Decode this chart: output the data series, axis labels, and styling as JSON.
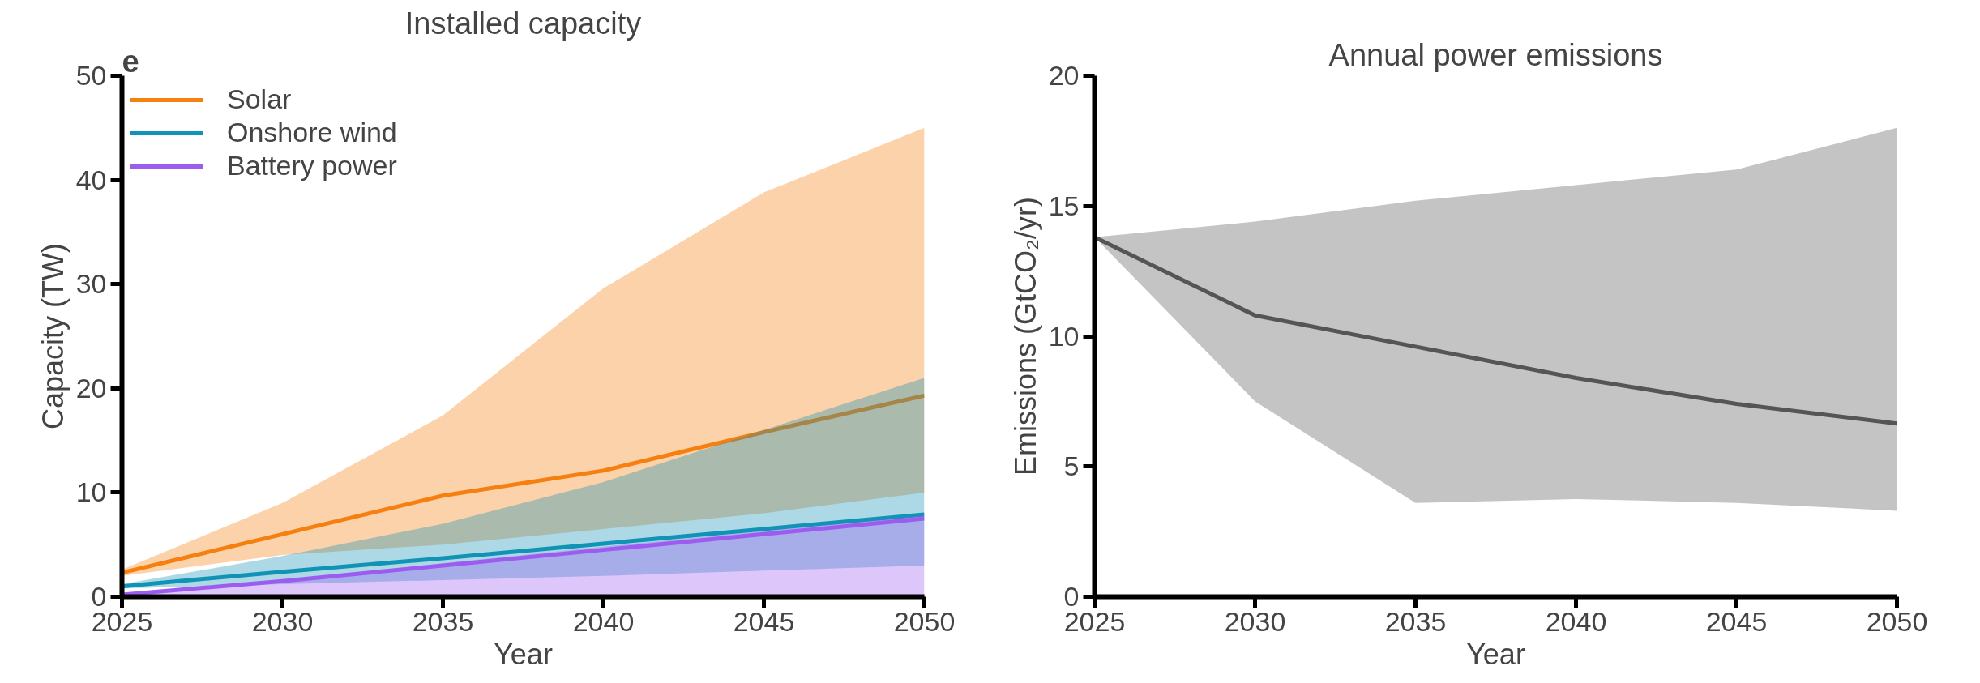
{
  "chart_data": [
    {
      "type": "line",
      "title": "Installed capacity",
      "xlabel": "Year",
      "ylabel": "Capacity (TW)",
      "annotations": [
        "e"
      ],
      "x": [
        2025,
        2030,
        2035,
        2040,
        2045,
        2050
      ],
      "xlim": [
        2025,
        2050
      ],
      "xticks": [
        2025,
        2030,
        2035,
        2040,
        2045,
        2050
      ],
      "ylim": [
        0,
        50
      ],
      "yticks": [
        0,
        10,
        20,
        30,
        40,
        50
      ],
      "legend": "top left",
      "grid": false,
      "series": [
        {
          "name": "Solar",
          "color": "#f57f0f",
          "values": [
            2.3,
            6,
            9.7,
            12.1,
            15.8,
            19.3
          ],
          "lower": [
            2,
            4,
            5,
            6.5,
            8,
            10
          ],
          "upper": [
            2.6,
            9,
            17.4,
            29.6,
            38.8,
            45
          ]
        },
        {
          "name": "Onshore wind",
          "color": "#1193b5",
          "values": [
            1,
            2.4,
            3.7,
            5.1,
            6.5,
            7.9
          ],
          "lower": [
            0.8,
            1.2,
            1.6,
            2,
            2.5,
            3
          ],
          "upper": [
            1.2,
            3.9,
            7,
            11,
            16,
            21
          ]
        },
        {
          "name": "Battery power",
          "color": "#9d5cf0",
          "values": [
            0.2,
            1.5,
            3,
            4.5,
            6,
            7.5
          ],
          "lower": [
            0,
            0,
            0,
            0,
            0,
            0
          ],
          "upper": [
            0.3,
            1.6,
            3.2,
            4.8,
            6.3,
            7.8
          ]
        }
      ]
    },
    {
      "type": "line",
      "title": "Annual power emissions",
      "xlabel": "Year",
      "ylabel": "Emissions (GtCO₂/yr)",
      "x": [
        2025,
        2030,
        2035,
        2040,
        2045,
        2050
      ],
      "xlim": [
        2025,
        2050
      ],
      "xticks": [
        2025,
        2030,
        2035,
        2040,
        2045,
        2050
      ],
      "ylim": [
        0,
        20
      ],
      "yticks": [
        0,
        5,
        10,
        15,
        20
      ],
      "legend": false,
      "grid": false,
      "series": [
        {
          "color": "#555555",
          "values": [
            13.8,
            10.8,
            9.6,
            8.4,
            7.4,
            6.65
          ],
          "lower": [
            13.8,
            7.5,
            3.6,
            3.75,
            3.6,
            3.3
          ],
          "upper": [
            13.8,
            14.4,
            15.2,
            15.8,
            16.4,
            18
          ]
        }
      ]
    }
  ]
}
